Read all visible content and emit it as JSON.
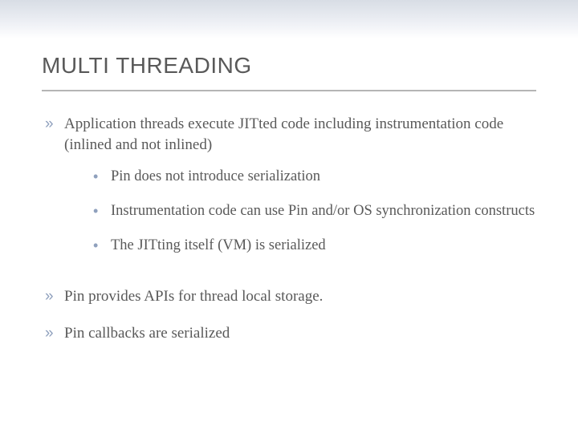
{
  "title": "MULTI THREADING",
  "colors": {
    "bullet": "#8fa0bd",
    "text": "#595959",
    "rule": "#b5b5b5",
    "band_top": "#d8dde5"
  },
  "typography": {
    "title_fontsize": 28,
    "body_fontsize": 19,
    "sub_fontsize": 18.5,
    "title_family": "Arial",
    "body_family": "Georgia"
  },
  "items": [
    {
      "text": "Application threads execute JITted code including instrumentation code (inlined and not inlined)",
      "sub": [
        {
          "text": "Pin does not introduce serialization"
        },
        {
          "text": "Instrumentation code can use Pin and/or OS synchronization constructs"
        },
        {
          "text": "The JITting itself (VM) is serialized"
        }
      ]
    },
    {
      "text": "Pin provides APIs for thread local storage.",
      "sub": []
    },
    {
      "text": "Pin callbacks are serialized",
      "sub": []
    }
  ],
  "markers": {
    "lvl1": "»",
    "lvl2": "•"
  }
}
